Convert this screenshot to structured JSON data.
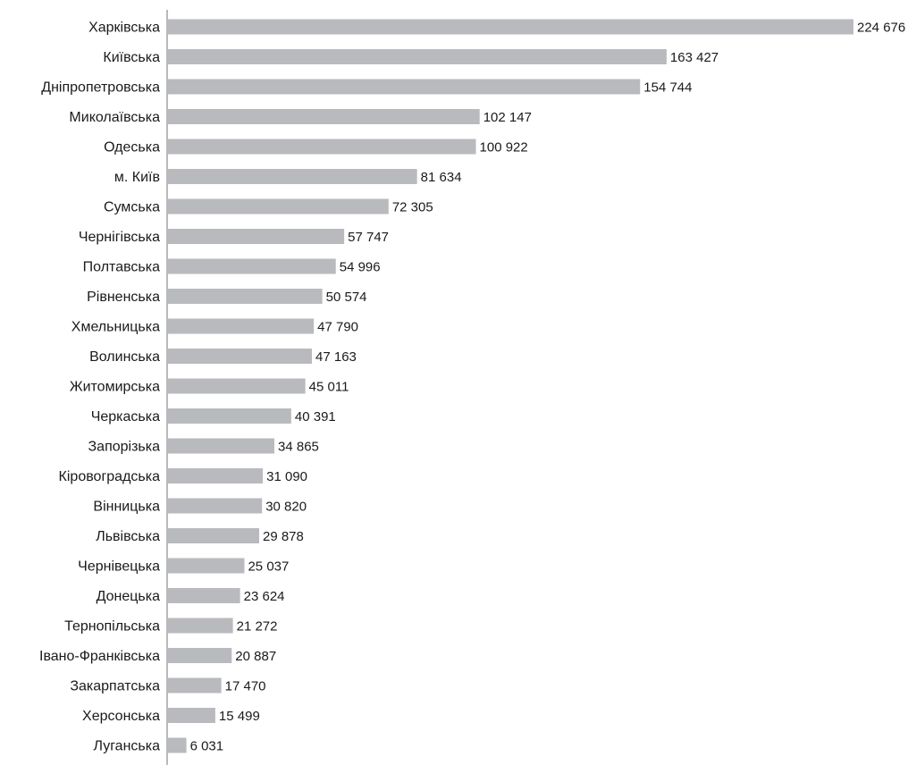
{
  "colors": {
    "bar": "#b9babd",
    "axis": "#8c8c8c",
    "text": "#1a1a1a"
  },
  "chart_data": {
    "type": "bar",
    "orientation": "horizontal",
    "title": "",
    "xlabel": "",
    "ylabel": "",
    "grid": false,
    "legend": "none",
    "xlim": [
      0,
      224676
    ],
    "categories": [
      "Харківська",
      "Київська",
      "Дніпропетровська",
      "Миколаївська",
      "Одеська",
      "м. Київ",
      "Сумська",
      "Чернігівська",
      "Полтавська",
      "Рівненська",
      "Хмельницька",
      "Волинська",
      "Житомирська",
      "Черкаська",
      "Запорізька",
      "Кіровоградська",
      "Вінницька",
      "Львівська",
      "Чернівецька",
      "Донецька",
      "Тернопільська",
      "Івано-Франківська",
      "Закарпатська",
      "Херсонська",
      "Луганська"
    ],
    "values": [
      224676,
      163427,
      154744,
      102147,
      100922,
      81634,
      72305,
      57747,
      54996,
      50574,
      47790,
      47163,
      45011,
      40391,
      34865,
      31090,
      30820,
      29878,
      25037,
      23624,
      21272,
      20887,
      17470,
      15499,
      6031
    ],
    "value_labels": [
      "224 676",
      "163 427",
      "154 744",
      "102 147",
      "100 922",
      "81 634",
      "72 305",
      "57 747",
      "54 996",
      "50 574",
      "47 790",
      "47 163",
      "45 011",
      "40 391",
      "34 865",
      "31 090",
      "30 820",
      "29 878",
      "25 037",
      "23 624",
      "21 272",
      "20 887",
      "17 470",
      "15 499",
      "6 031"
    ]
  }
}
